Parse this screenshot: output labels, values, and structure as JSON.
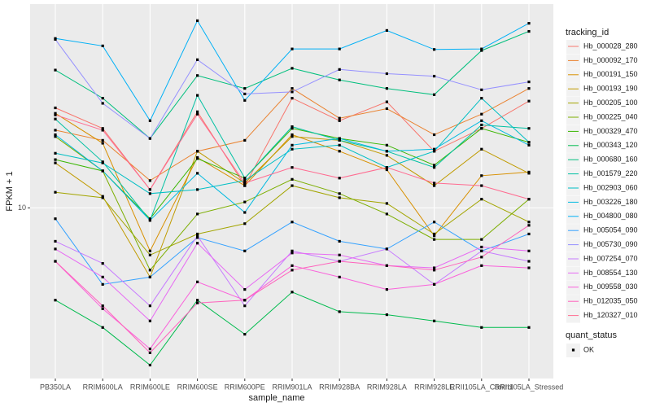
{
  "chart_data": {
    "type": "line",
    "x_label": "sample_name",
    "y_label": "FPKM + 1",
    "categories": [
      "PB350LA",
      "RRIM600LA",
      "RRIM600LE",
      "RRIM600SE",
      "RRIM600PE",
      "RRIM901LA",
      "RRIM928BA",
      "RRIM928LA",
      "RRIM928LE",
      "RRII105LA_Control",
      "RRII105LA_Stressed"
    ],
    "log_y": true,
    "grid": true,
    "ylim": [
      3.2,
      39
    ],
    "yticks": [
      10
    ],
    "legend_title": "tracking_id",
    "legend_position": "right",
    "point_legend": {
      "title": "quant_status",
      "labels": [
        "OK"
      ],
      "color": "#000000"
    },
    "series": [
      {
        "name": "Hb_000028_280",
        "color": "#F8766D",
        "values": [
          19.5,
          17.0,
          11.3,
          19.0,
          11.6,
          20.8,
          17.9,
          20.3,
          14.6,
          17.0,
          20.4
        ]
      },
      {
        "name": "Hb_000092_170",
        "color": "#EA8331",
        "values": [
          16.8,
          15.7,
          12.0,
          14.6,
          15.7,
          22.2,
          18.2,
          19.4,
          16.3,
          18.7,
          22.2
        ]
      },
      {
        "name": "Hb_000191_150",
        "color": "#D89000",
        "values": [
          18.8,
          15.4,
          7.5,
          14.0,
          11.6,
          16.3,
          14.6,
          12.9,
          8.3,
          12.4,
          12.7
        ]
      },
      {
        "name": "Hb_000193_190",
        "color": "#C09B00",
        "values": [
          13.5,
          10.8,
          6.3,
          14.6,
          11.8,
          16.1,
          15.7,
          14.2,
          11.6,
          14.8,
          12.6
        ]
      },
      {
        "name": "Hb_000205_100",
        "color": "#A3A500",
        "values": [
          11.1,
          10.7,
          7.3,
          8.4,
          9.0,
          11.6,
          10.7,
          10.3,
          8.4,
          10.6,
          9.1
        ]
      },
      {
        "name": "Hb_000225_040",
        "color": "#7CAE00",
        "values": [
          16.1,
          12.8,
          6.6,
          9.6,
          10.4,
          12.1,
          11.0,
          9.6,
          8.1,
          8.1,
          10.6
        ]
      },
      {
        "name": "Hb_000329_470",
        "color": "#39B600",
        "values": [
          13.8,
          12.8,
          9.3,
          13.9,
          12.2,
          17.0,
          15.9,
          15.2,
          13.3,
          17.0,
          15.5
        ]
      },
      {
        "name": "Hb_000343_120",
        "color": "#00BB4E",
        "values": [
          5.4,
          4.5,
          3.5,
          5.4,
          4.3,
          5.7,
          5.0,
          4.9,
          4.7,
          4.5,
          4.5
        ]
      },
      {
        "name": "Hb_000680_160",
        "color": "#00BF7D",
        "values": [
          25.1,
          20.8,
          15.9,
          24.2,
          22.2,
          25.4,
          23.5,
          22.2,
          21.3,
          28.6,
          32.5
        ]
      },
      {
        "name": "Hb_001579_220",
        "color": "#00C1A3",
        "values": [
          18.1,
          13.6,
          9.2,
          21.2,
          12.2,
          17.2,
          15.7,
          14.6,
          13.1,
          17.4,
          17.0
        ]
      },
      {
        "name": "Hb_002903_060",
        "color": "#00BFC4",
        "values": [
          14.4,
          13.5,
          11.0,
          11.3,
          12.0,
          14.8,
          15.2,
          13.1,
          14.6,
          20.8,
          15.5
        ]
      },
      {
        "name": "Hb_003226_180",
        "color": "#00BAE0",
        "values": [
          16.3,
          12.8,
          9.2,
          12.6,
          9.7,
          15.2,
          15.9,
          14.6,
          14.8,
          17.9,
          15.2
        ]
      },
      {
        "name": "Hb_004800_080",
        "color": "#00B0F6",
        "values": [
          31.0,
          29.5,
          17.9,
          34.9,
          20.5,
          28.9,
          28.9,
          32.7,
          28.8,
          28.9,
          34.3
        ]
      },
      {
        "name": "Hb_005054_090",
        "color": "#35A2FF",
        "values": [
          9.3,
          6.0,
          6.3,
          8.2,
          7.5,
          9.1,
          8.0,
          7.6,
          9.1,
          7.5,
          8.4
        ]
      },
      {
        "name": "Hb_005730_090",
        "color": "#9590FF",
        "values": [
          30.8,
          20.1,
          15.9,
          26.9,
          21.4,
          21.7,
          25.2,
          24.5,
          24.1,
          22.0,
          23.2
        ]
      },
      {
        "name": "Hb_007254_070",
        "color": "#C77CFF",
        "values": [
          8.0,
          6.9,
          5.2,
          8.3,
          5.2,
          7.5,
          7.0,
          7.6,
          6.0,
          7.5,
          7.0
        ]
      },
      {
        "name": "Hb_008554_130",
        "color": "#E76BF3",
        "values": [
          7.6,
          6.3,
          4.7,
          7.9,
          5.8,
          7.4,
          7.3,
          6.8,
          6.7,
          7.7,
          7.5
        ]
      },
      {
        "name": "Hb_009558_030",
        "color": "#FA62DB",
        "values": [
          7.0,
          5.1,
          3.9,
          6.1,
          5.4,
          6.8,
          6.3,
          5.8,
          6.0,
          6.8,
          6.7
        ]
      },
      {
        "name": "Hb_012035_050",
        "color": "#FF62BC",
        "values": [
          7.0,
          5.2,
          3.8,
          5.3,
          5.4,
          6.6,
          7.0,
          6.8,
          6.6,
          7.2,
          8.9
        ]
      },
      {
        "name": "Hb_120327_010",
        "color": "#FF6C91",
        "values": [
          18.6,
          16.8,
          11.3,
          18.7,
          11.8,
          13.1,
          12.2,
          13.1,
          11.8,
          11.6,
          10.6
        ]
      }
    ]
  }
}
